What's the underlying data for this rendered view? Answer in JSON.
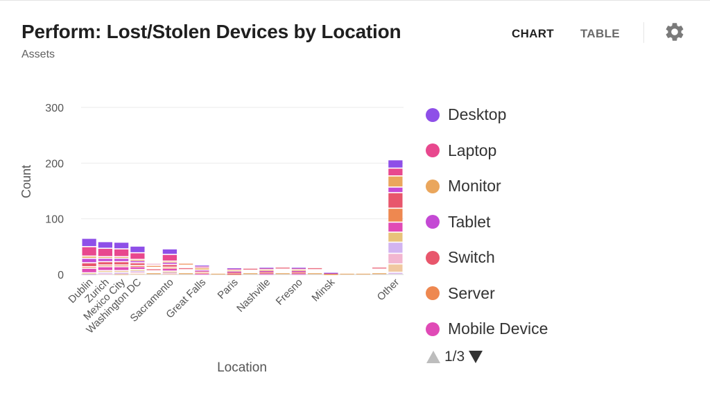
{
  "header": {
    "title": "Perform: Lost/Stolen Devices by Location",
    "subtitle": "Assets"
  },
  "tabs": [
    {
      "label": "CHART",
      "active": true
    },
    {
      "label": "TABLE",
      "active": false
    }
  ],
  "settings_icon": "gear-icon",
  "legend": {
    "pager": "1/3",
    "up_icon": "triangle-up-icon",
    "down_icon": "triangle-down-icon"
  },
  "chart_data": {
    "type": "bar",
    "stacked": true,
    "xlabel": "Location",
    "ylabel": "Count",
    "ylim": [
      0,
      300
    ],
    "yticks": [
      0,
      100,
      200,
      300
    ],
    "grid": true,
    "legend_position": "right",
    "categories": [
      "Dublin",
      "Zurich",
      "Mexico City",
      "Washington DC",
      "Sacramento",
      "Great Falls",
      "Paris",
      "Nashville",
      "Fresno",
      "Minsk",
      "Other"
    ],
    "label_every": 1,
    "series": [
      {
        "name": "Desktop",
        "color": "#8e4fe8",
        "values": [
          15,
          12,
          12,
          12,
          10,
          2,
          1,
          1,
          1,
          1,
          15
        ]
      },
      {
        "name": "Laptop",
        "color": "#e8488e",
        "values": [
          17,
          15,
          14,
          12,
          12,
          3,
          3,
          3,
          3,
          1,
          14
        ]
      },
      {
        "name": "Monitor",
        "color": "#eaa65c",
        "values": [
          4,
          3,
          3,
          2,
          2,
          4,
          2,
          2,
          2,
          1,
          20
        ]
      },
      {
        "name": "Tablet",
        "color": "#c449d4",
        "values": [
          8,
          6,
          6,
          4,
          4,
          1,
          1,
          1,
          1,
          0,
          10
        ]
      },
      {
        "name": "Switch",
        "color": "#e8566c",
        "values": [
          7,
          6,
          6,
          5,
          5,
          3,
          2,
          2,
          2,
          0,
          28
        ]
      },
      {
        "name": "Server",
        "color": "#ee8850",
        "values": [
          3,
          3,
          3,
          2,
          2,
          2,
          1,
          1,
          1,
          0,
          25
        ]
      },
      {
        "name": "Mobile Device",
        "color": "#e04ab6",
        "values": [
          8,
          7,
          7,
          5,
          5,
          2,
          1,
          1,
          1,
          0,
          18
        ]
      }
    ],
    "extra_series_colors": [
      "#e8c27a",
      "#d2b4f0",
      "#f2b6d0",
      "#f0c8a0",
      "#dcb8ec"
    ],
    "extra_series_values": [
      [
        2,
        3,
        3,
        2,
        1,
        0,
        1,
        0,
        0,
        1,
        18
      ],
      [
        1,
        2,
        1,
        2,
        2,
        0,
        0,
        1,
        1,
        0,
        20
      ],
      [
        0,
        2,
        2,
        3,
        1,
        0,
        0,
        1,
        1,
        0,
        19
      ],
      [
        0,
        0,
        1,
        2,
        2,
        0,
        0,
        0,
        0,
        0,
        15
      ],
      [
        0,
        0,
        0,
        0,
        0,
        0,
        0,
        0,
        0,
        0,
        4
      ]
    ]
  }
}
